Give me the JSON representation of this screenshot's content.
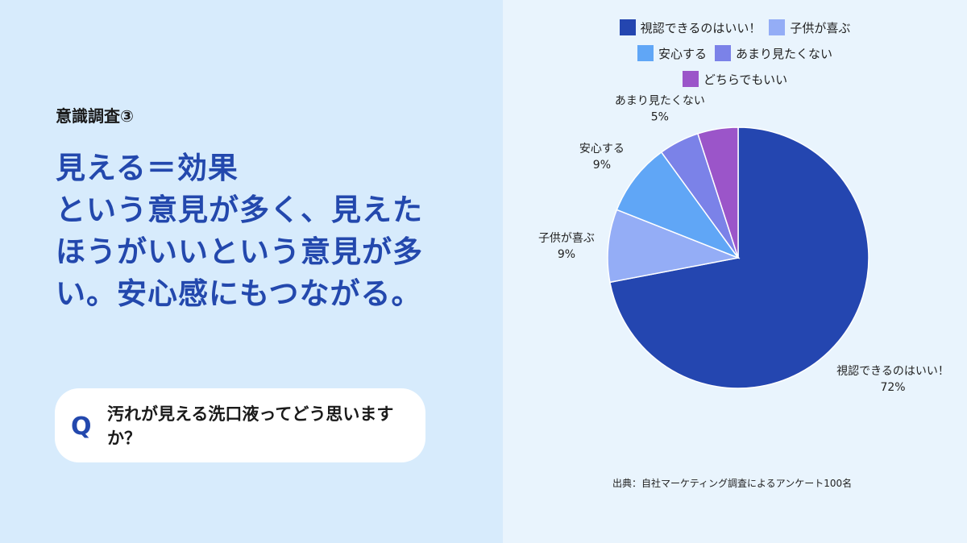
{
  "left": {
    "kicker": "意識調査③",
    "headline_lines": [
      "見える＝効果",
      "という意見が多く、見えたほうがいいという意見が多い。安心感にもつながる。"
    ],
    "question": {
      "mark": "Q",
      "text": "汚れが見える洗口液ってどう思いますか？"
    }
  },
  "chart_data": {
    "type": "pie",
    "start": "top",
    "direction": "clockwise",
    "legend_position": "top",
    "slices": [
      {
        "label": "視認できるのはいい！",
        "value": 72,
        "value_label": "72%",
        "color": "#2446b0"
      },
      {
        "label": "子供が喜ぶ",
        "value": 9,
        "value_label": "9%",
        "color": "#94adf6"
      },
      {
        "label": "安心する",
        "value": 9,
        "value_label": "9%",
        "color": "#60a6f6"
      },
      {
        "label": "あまり見たくない",
        "value": 5,
        "value_label": "5%",
        "color": "#7b82e8"
      },
      {
        "label": "どちらでもいい",
        "value": 5,
        "value_label": "",
        "color": "#9b55c9"
      }
    ]
  },
  "source": "出典：自社マーケティング調査によるアンケート100名"
}
